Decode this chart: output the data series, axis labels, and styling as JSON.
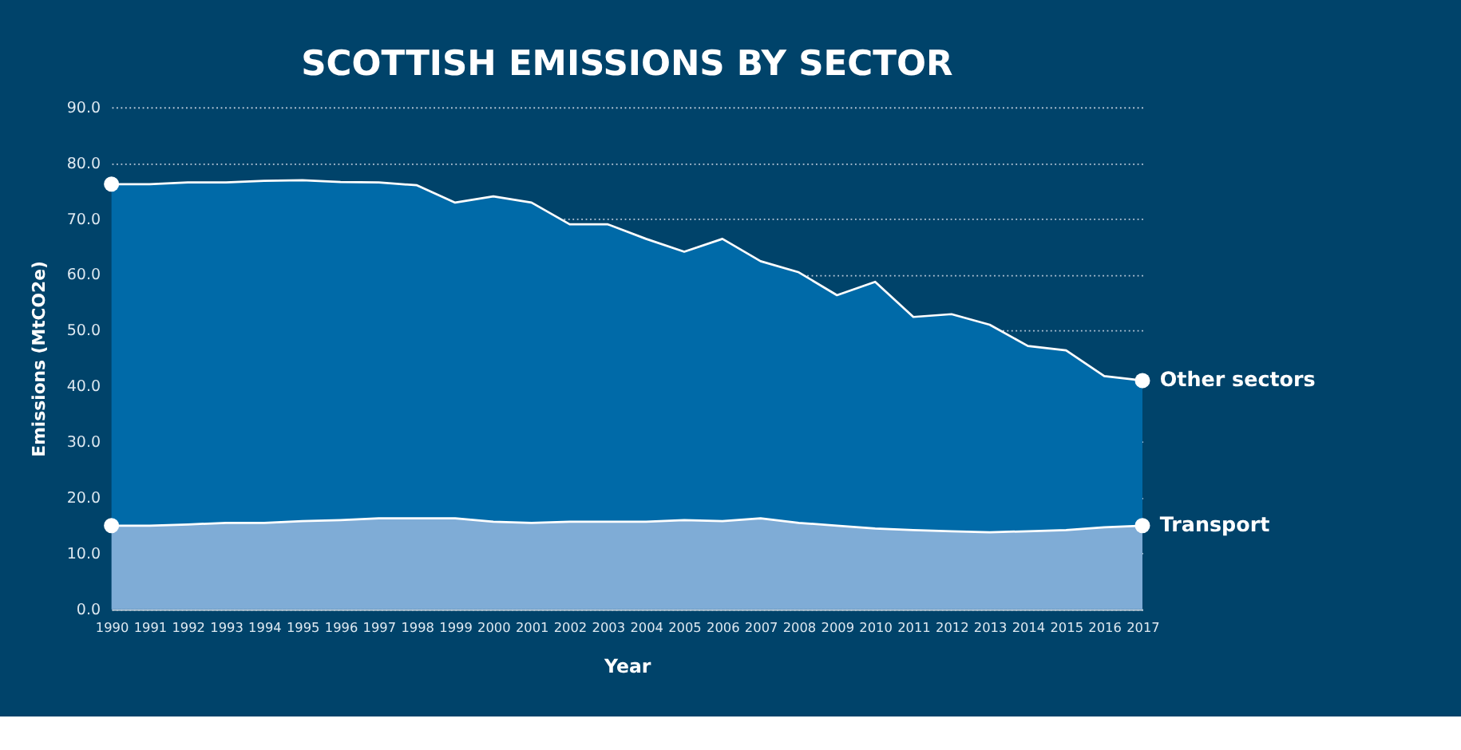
{
  "chart_data": {
    "type": "area",
    "title": "SCOTTISH EMISSIONS BY SECTOR",
    "xlabel": "Year",
    "ylabel": "Emissions (MtCO2e)",
    "categories": [
      "1990",
      "1991",
      "1992",
      "1993",
      "1994",
      "1995",
      "1996",
      "1997",
      "1998",
      "1999",
      "2000",
      "2001",
      "2002",
      "2003",
      "2004",
      "2005",
      "2006",
      "2007",
      "2008",
      "2009",
      "2010",
      "2011",
      "2012",
      "2013",
      "2014",
      "2015",
      "2016",
      "2017"
    ],
    "stacked": true,
    "series": [
      {
        "name": "Transport",
        "color": "#7facd6",
        "values": [
          15.0,
          15.0,
          15.2,
          15.5,
          15.5,
          15.8,
          16.0,
          16.3,
          16.3,
          16.3,
          15.7,
          15.5,
          15.7,
          15.7,
          15.7,
          16.0,
          15.8,
          16.3,
          15.5,
          15.0,
          14.5,
          14.2,
          14.0,
          13.8,
          14.0,
          14.2,
          14.7,
          15.0
        ]
      },
      {
        "name": "Other sectors",
        "color": "#006aa8",
        "values": [
          61.2,
          61.2,
          61.3,
          61.0,
          61.3,
          61.1,
          60.6,
          60.2,
          59.7,
          56.6,
          58.3,
          57.4,
          53.3,
          53.3,
          50.7,
          48.1,
          50.6,
          46.1,
          44.9,
          41.3,
          44.2,
          38.2,
          38.9,
          37.2,
          33.2,
          32.2,
          27.1,
          26.0
        ]
      }
    ],
    "ylim": [
      0,
      90
    ],
    "yticks": [
      {
        "value": 0,
        "label": "0.0"
      },
      {
        "value": 10,
        "label": "10.0"
      },
      {
        "value": 20,
        "label": "20.0"
      },
      {
        "value": 30,
        "label": "30.0"
      },
      {
        "value": 40,
        "label": "40.0"
      },
      {
        "value": 50,
        "label": "50.0"
      },
      {
        "value": 60,
        "label": "60.0"
      },
      {
        "value": 70,
        "label": "70.0"
      },
      {
        "value": 80,
        "label": "80.0"
      },
      {
        "value": 90,
        "label": "90.0"
      }
    ],
    "grid": "y",
    "legend": false
  }
}
